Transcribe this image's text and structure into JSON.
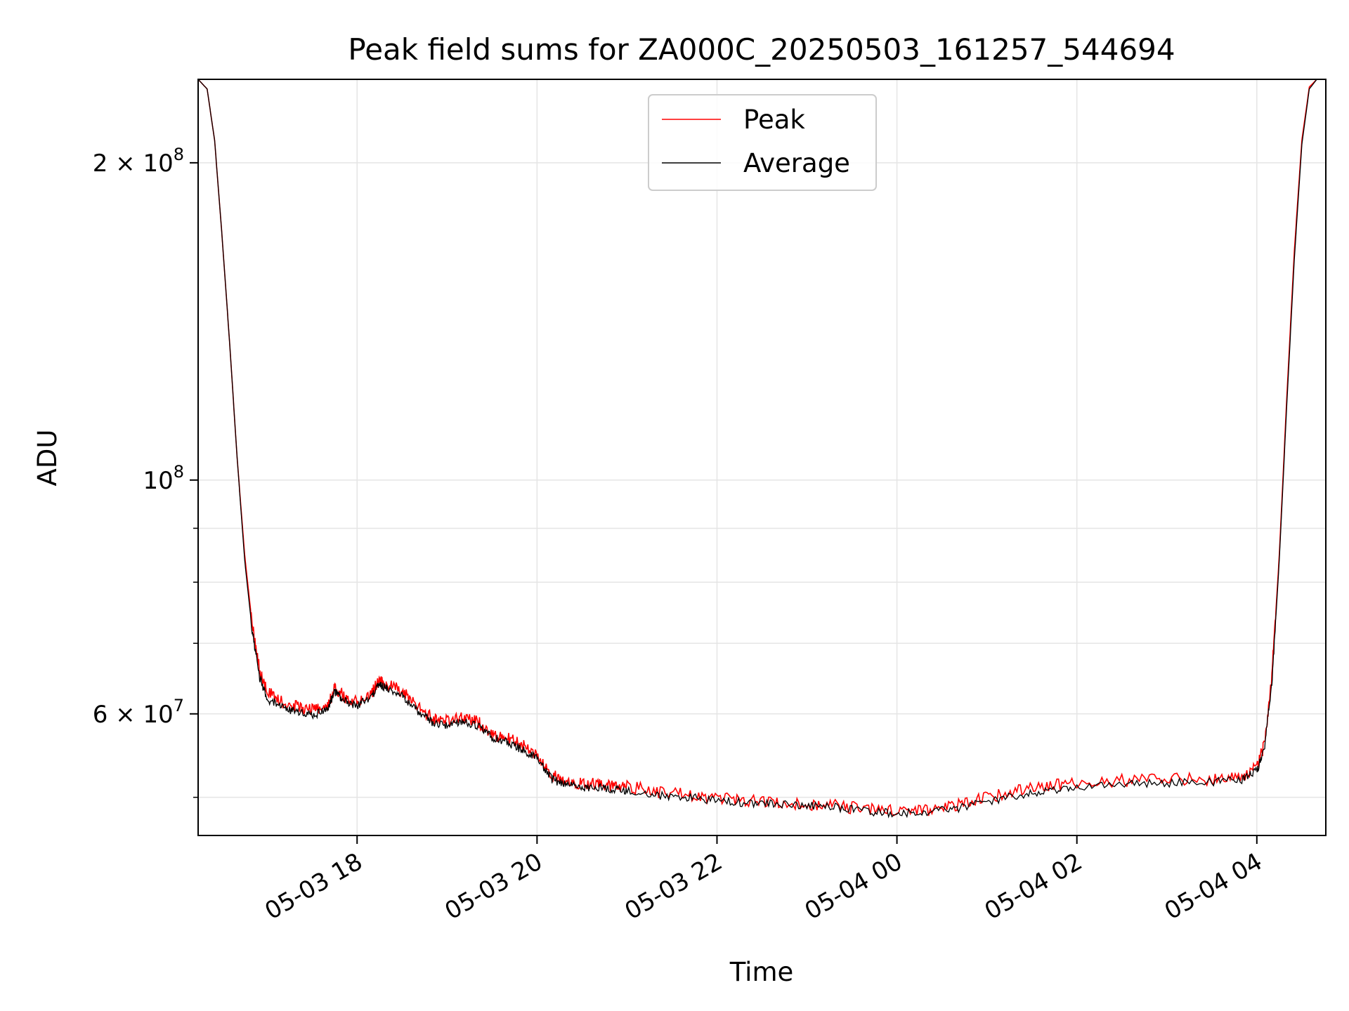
{
  "chart_data": {
    "type": "line",
    "title": "Peak field sums for ZA000C_20250503_161257_544694",
    "xlabel": "Time",
    "ylabel": "ADU",
    "yscale": "log",
    "xlim": [
      "2025-05-03 16:14",
      "2025-05-04 04:46"
    ],
    "ylim": [
      46000000,
      240000000
    ],
    "grid": true,
    "legend_position": "upper-center",
    "x_ticks": [
      {
        "value": "2025-05-03 18:00",
        "label": "05-03 18"
      },
      {
        "value": "2025-05-03 20:00",
        "label": "05-03 20"
      },
      {
        "value": "2025-05-03 22:00",
        "label": "05-03 22"
      },
      {
        "value": "2025-05-04 00:00",
        "label": "05-04 00"
      },
      {
        "value": "2025-05-04 02:00",
        "label": "05-04 02"
      },
      {
        "value": "2025-05-04 04:00",
        "label": "05-04 04"
      }
    ],
    "y_ticks": [
      {
        "value": 200000000,
        "label_base": "2 × 10",
        "label_exp": "8"
      },
      {
        "value": 100000000,
        "label_base": "10",
        "label_exp": "8"
      },
      {
        "value": 60000000,
        "label_base": "6 × 10",
        "label_exp": "7"
      }
    ],
    "y_minor_ticks": [
      50000000,
      70000000,
      80000000,
      90000000
    ],
    "series": [
      {
        "name": "Peak",
        "color": "#ff0000",
        "x": [
          "2025-05-03 16:14",
          "2025-05-03 16:20",
          "2025-05-03 16:25",
          "2025-05-03 16:30",
          "2025-05-03 16:35",
          "2025-05-03 16:40",
          "2025-05-03 16:45",
          "2025-05-03 16:50",
          "2025-05-03 16:55",
          "2025-05-03 17:00",
          "2025-05-03 17:10",
          "2025-05-03 17:20",
          "2025-05-03 17:30",
          "2025-05-03 17:40",
          "2025-05-03 17:45",
          "2025-05-03 17:50",
          "2025-05-03 18:00",
          "2025-05-03 18:10",
          "2025-05-03 18:15",
          "2025-05-03 18:20",
          "2025-05-03 18:30",
          "2025-05-03 18:40",
          "2025-05-03 18:50",
          "2025-05-03 19:00",
          "2025-05-03 19:10",
          "2025-05-03 19:20",
          "2025-05-03 19:30",
          "2025-05-03 19:40",
          "2025-05-03 19:50",
          "2025-05-03 20:00",
          "2025-05-03 20:10",
          "2025-05-03 20:20",
          "2025-05-03 20:30",
          "2025-05-03 20:40",
          "2025-05-03 20:50",
          "2025-05-03 21:00",
          "2025-05-03 21:20",
          "2025-05-03 21:40",
          "2025-05-03 22:00",
          "2025-05-03 22:20",
          "2025-05-03 22:40",
          "2025-05-03 23:00",
          "2025-05-03 23:20",
          "2025-05-03 23:40",
          "2025-05-04 00:00",
          "2025-05-04 00:20",
          "2025-05-04 00:40",
          "2025-05-04 01:00",
          "2025-05-04 01:20",
          "2025-05-04 01:40",
          "2025-05-04 02:00",
          "2025-05-04 02:30",
          "2025-05-04 03:00",
          "2025-05-04 03:30",
          "2025-05-04 03:50",
          "2025-05-04 04:00",
          "2025-05-04 04:05",
          "2025-05-04 04:10",
          "2025-05-04 04:15",
          "2025-05-04 04:20",
          "2025-05-04 04:25",
          "2025-05-04 04:30",
          "2025-05-04 04:35",
          "2025-05-04 04:40",
          "2025-05-04 04:46"
        ],
        "y": [
          240000000,
          235000000,
          210000000,
          170000000,
          135000000,
          105000000,
          85000000,
          73000000,
          66000000,
          63000000,
          61500000,
          61000000,
          60500000,
          61000000,
          63500000,
          62500000,
          61500000,
          63000000,
          64500000,
          64000000,
          63000000,
          61000000,
          59500000,
          59000000,
          59500000,
          59000000,
          57500000,
          57000000,
          56000000,
          55000000,
          52500000,
          51800000,
          51500000,
          51500000,
          51300000,
          51200000,
          50600000,
          50300000,
          49900000,
          49600000,
          49500000,
          49300000,
          49100000,
          48700000,
          48500000,
          48600000,
          49200000,
          50000000,
          50700000,
          51200000,
          51600000,
          51900000,
          52000000,
          52000000,
          52300000,
          53500000,
          56000000,
          65000000,
          85000000,
          120000000,
          165000000,
          210000000,
          236000000,
          240000000,
          240000000
        ]
      },
      {
        "name": "Average",
        "color": "#000000",
        "x": [
          "2025-05-03 16:14",
          "2025-05-03 16:20",
          "2025-05-03 16:25",
          "2025-05-03 16:30",
          "2025-05-03 16:35",
          "2025-05-03 16:40",
          "2025-05-03 16:45",
          "2025-05-03 16:50",
          "2025-05-03 16:55",
          "2025-05-03 17:00",
          "2025-05-03 17:10",
          "2025-05-03 17:20",
          "2025-05-03 17:30",
          "2025-05-03 17:40",
          "2025-05-03 17:45",
          "2025-05-03 17:50",
          "2025-05-03 18:00",
          "2025-05-03 18:10",
          "2025-05-03 18:15",
          "2025-05-03 18:20",
          "2025-05-03 18:30",
          "2025-05-03 18:40",
          "2025-05-03 18:50",
          "2025-05-03 19:00",
          "2025-05-03 19:10",
          "2025-05-03 19:20",
          "2025-05-03 19:30",
          "2025-05-03 19:40",
          "2025-05-03 19:50",
          "2025-05-03 20:00",
          "2025-05-03 20:10",
          "2025-05-03 20:20",
          "2025-05-03 20:30",
          "2025-05-03 20:40",
          "2025-05-03 20:50",
          "2025-05-03 21:00",
          "2025-05-03 21:20",
          "2025-05-03 21:40",
          "2025-05-03 22:00",
          "2025-05-03 22:20",
          "2025-05-03 22:40",
          "2025-05-03 23:00",
          "2025-05-03 23:20",
          "2025-05-03 23:40",
          "2025-05-04 00:00",
          "2025-05-04 00:20",
          "2025-05-04 00:40",
          "2025-05-04 01:00",
          "2025-05-04 01:20",
          "2025-05-04 01:40",
          "2025-05-04 02:00",
          "2025-05-04 02:30",
          "2025-05-04 03:00",
          "2025-05-04 03:30",
          "2025-05-04 03:50",
          "2025-05-04 04:00",
          "2025-05-04 04:05",
          "2025-05-04 04:10",
          "2025-05-04 04:15",
          "2025-05-04 04:20",
          "2025-05-04 04:25",
          "2025-05-04 04:30",
          "2025-05-04 04:35",
          "2025-05-04 04:40",
          "2025-05-04 04:46"
        ],
        "y": [
          240000000,
          235000000,
          210000000,
          170000000,
          135000000,
          105000000,
          84000000,
          72000000,
          65000000,
          62000000,
          60800000,
          60300000,
          59800000,
          60500000,
          63000000,
          62000000,
          61000000,
          62500000,
          64000000,
          63500000,
          62400000,
          60400000,
          58900000,
          58500000,
          59000000,
          58500000,
          57000000,
          56400000,
          55500000,
          54500000,
          52000000,
          51300000,
          51100000,
          51100000,
          50900000,
          50800000,
          50200000,
          50000000,
          49700000,
          49400000,
          49300000,
          49100000,
          48900000,
          48500000,
          48300000,
          48400000,
          48800000,
          49500000,
          50200000,
          50700000,
          51200000,
          51500000,
          51600000,
          51700000,
          51900000,
          53000000,
          55500000,
          64000000,
          84000000,
          118000000,
          162000000,
          208000000,
          235000000,
          240000000,
          240000000
        ]
      }
    ]
  }
}
